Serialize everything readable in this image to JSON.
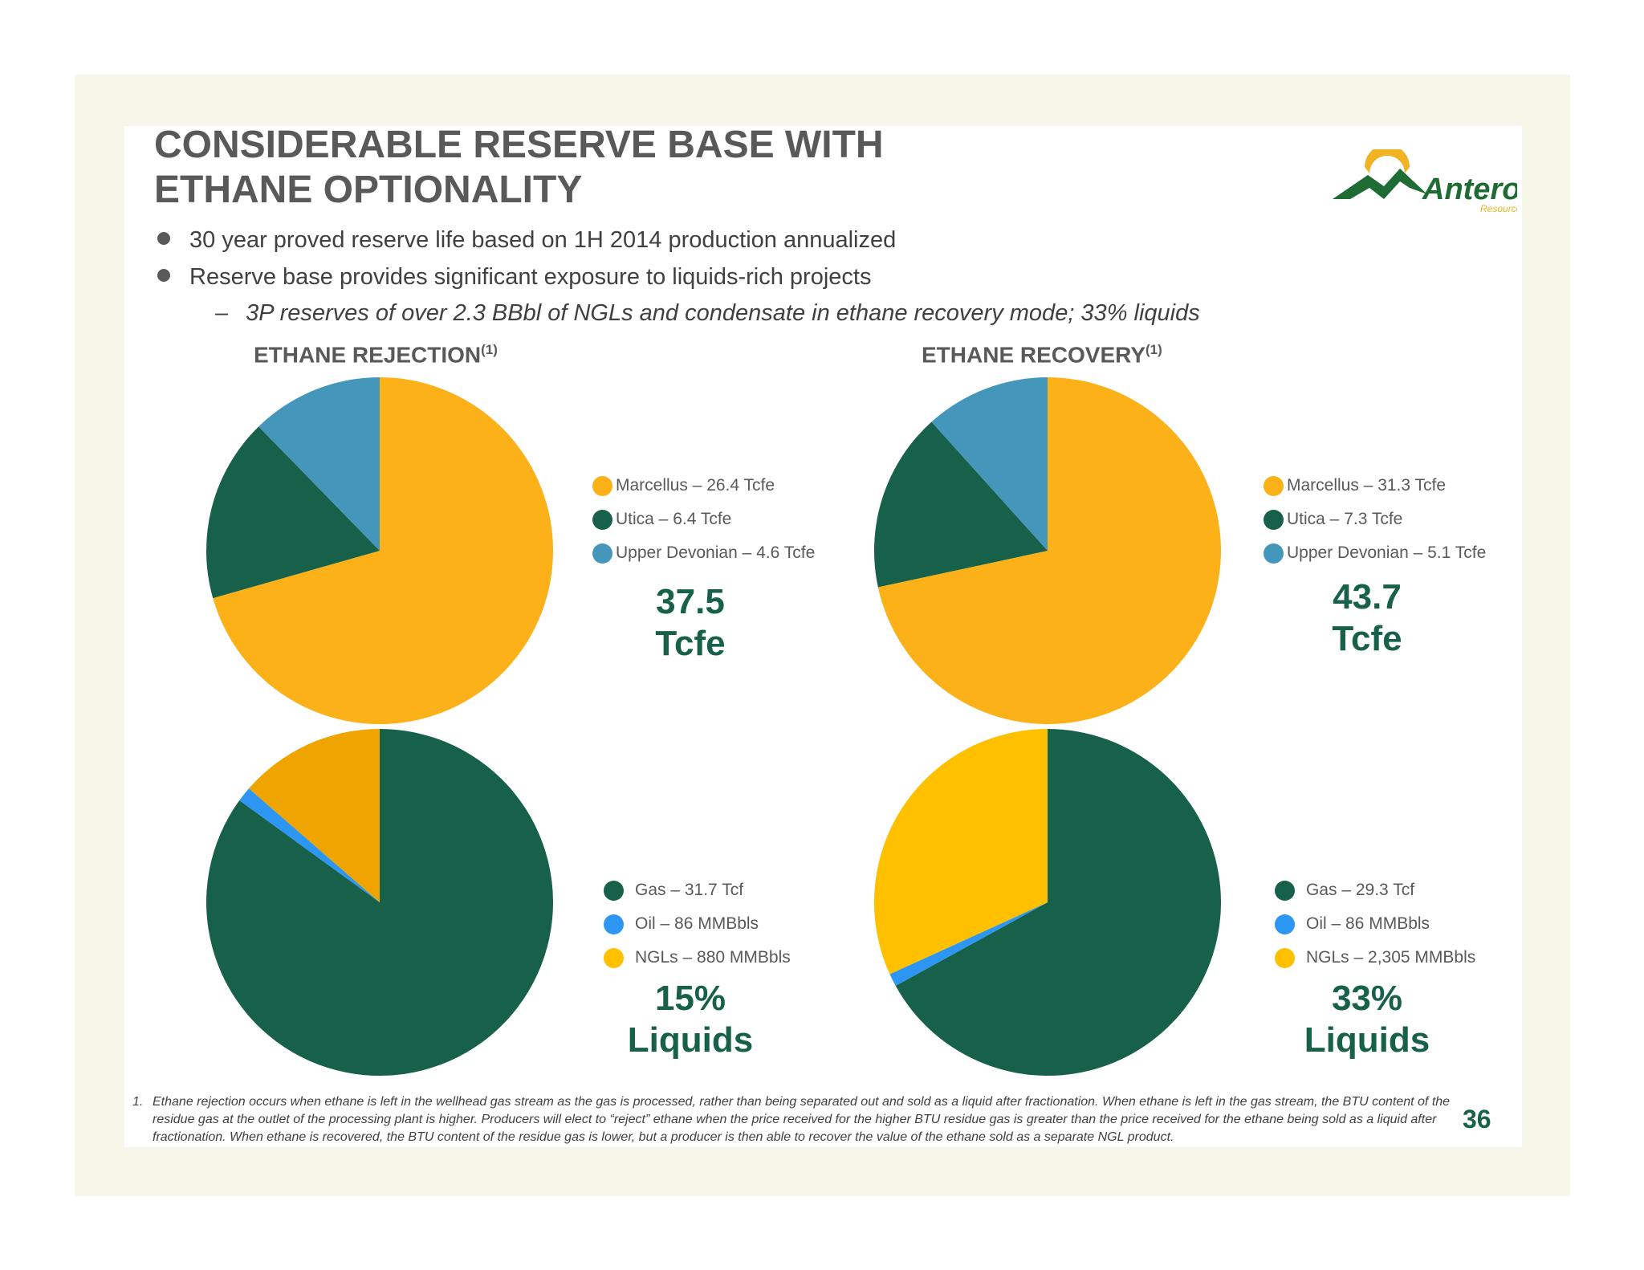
{
  "slide": {
    "title_line1": "CONSIDERABLE RESERVE BASE WITH",
    "title_line2": "ETHANE OPTIONALITY",
    "bullets": [
      "30 year proved reserve life based on 1H 2014 production annualized",
      "Reserve base provides significant exposure to liquids-rich projects"
    ],
    "sub_bullet_dash": "–",
    "sub_bullet": "3P reserves of over 2.3 BBbl of NGLs and condensate in ethane recovery mode; 33% liquids",
    "footnote_number": "1.",
    "footnote": "Ethane rejection occurs when ethane is left in the wellhead gas stream as the gas is processed, rather than being separated out and sold as a liquid after fractionation. When ethane is left in the gas stream, the BTU content of the residue gas at the outlet of the processing plant is higher. Producers will elect to “reject” ethane when the price received for the higher BTU residue gas is greater than the price received for the ethane being sold as a liquid after fractionation. When ethane is recovered, the BTU content of the residue gas is lower, but a producer is then able to recover the value of the ethane sold as a separate NGL product.",
    "page_number": "36"
  },
  "logo": {
    "name": "Antero",
    "sub": "Resources",
    "colors": {
      "green": "#1e6b33",
      "gold": "#f0b323"
    }
  },
  "sections": {
    "rejection": {
      "label": "ETHANE REJECTION",
      "sup": "(1)"
    },
    "recovery": {
      "label": "ETHANE RECOVERY",
      "sup": "(1)"
    }
  },
  "chart_data": [
    {
      "type": "pie",
      "group": "ETHANE REJECTION",
      "labels": [
        "Marcellus",
        "Utica",
        "Upper Devonian"
      ],
      "values": [
        26.4,
        6.4,
        4.6
      ],
      "unit": "Tcfe",
      "colors": [
        "#fbb117",
        "#17604a",
        "#4596bb"
      ],
      "legend": [
        "Marcellus – 26.4 Tcfe",
        "Utica – 6.4 Tcfe",
        "Upper Devonian – 4.6 Tcfe"
      ],
      "total_line1": "37.5",
      "total_line2": "Tcfe"
    },
    {
      "type": "pie",
      "group": "ETHANE RECOVERY",
      "labels": [
        "Marcellus",
        "Utica",
        "Upper Devonian"
      ],
      "values": [
        31.3,
        7.3,
        5.1
      ],
      "unit": "Tcfe",
      "colors": [
        "#fbb117",
        "#17604a",
        "#4596bb"
      ],
      "legend": [
        "Marcellus – 31.3 Tcfe",
        "Utica – 7.3 Tcfe",
        "Upper Devonian – 5.1 Tcfe"
      ],
      "total_line1": "43.7",
      "total_line2": "Tcfe"
    },
    {
      "type": "pie",
      "group": "ETHANE REJECTION",
      "labels": [
        "Gas",
        "Oil",
        "NGLs"
      ],
      "values": [
        85,
        1.4,
        13.6
      ],
      "colors": [
        "#17604a",
        "#2d96f3",
        "#f0a400"
      ],
      "legend_colors": [
        "#17604a",
        "#2d96f3",
        "#ffc000"
      ],
      "legend": [
        "Gas – 31.7 Tcf",
        "Oil – 86 MMBbls",
        "NGLs – 880 MMBbls"
      ],
      "total_line1": "15%",
      "total_line2": "Liquids"
    },
    {
      "type": "pie",
      "group": "ETHANE RECOVERY",
      "labels": [
        "Gas",
        "Oil",
        "NGLs"
      ],
      "values": [
        67,
        1.2,
        31.8
      ],
      "colors": [
        "#17604a",
        "#2d96f3",
        "#ffc000"
      ],
      "legend_colors": [
        "#17604a",
        "#2d96f3",
        "#ffc000"
      ],
      "legend": [
        "Gas – 29.3 Tcf",
        "Oil – 86 MMBbls",
        "NGLs – 2,305 MMBbls"
      ],
      "total_line1": "33%",
      "total_line2": "Liquids"
    }
  ]
}
